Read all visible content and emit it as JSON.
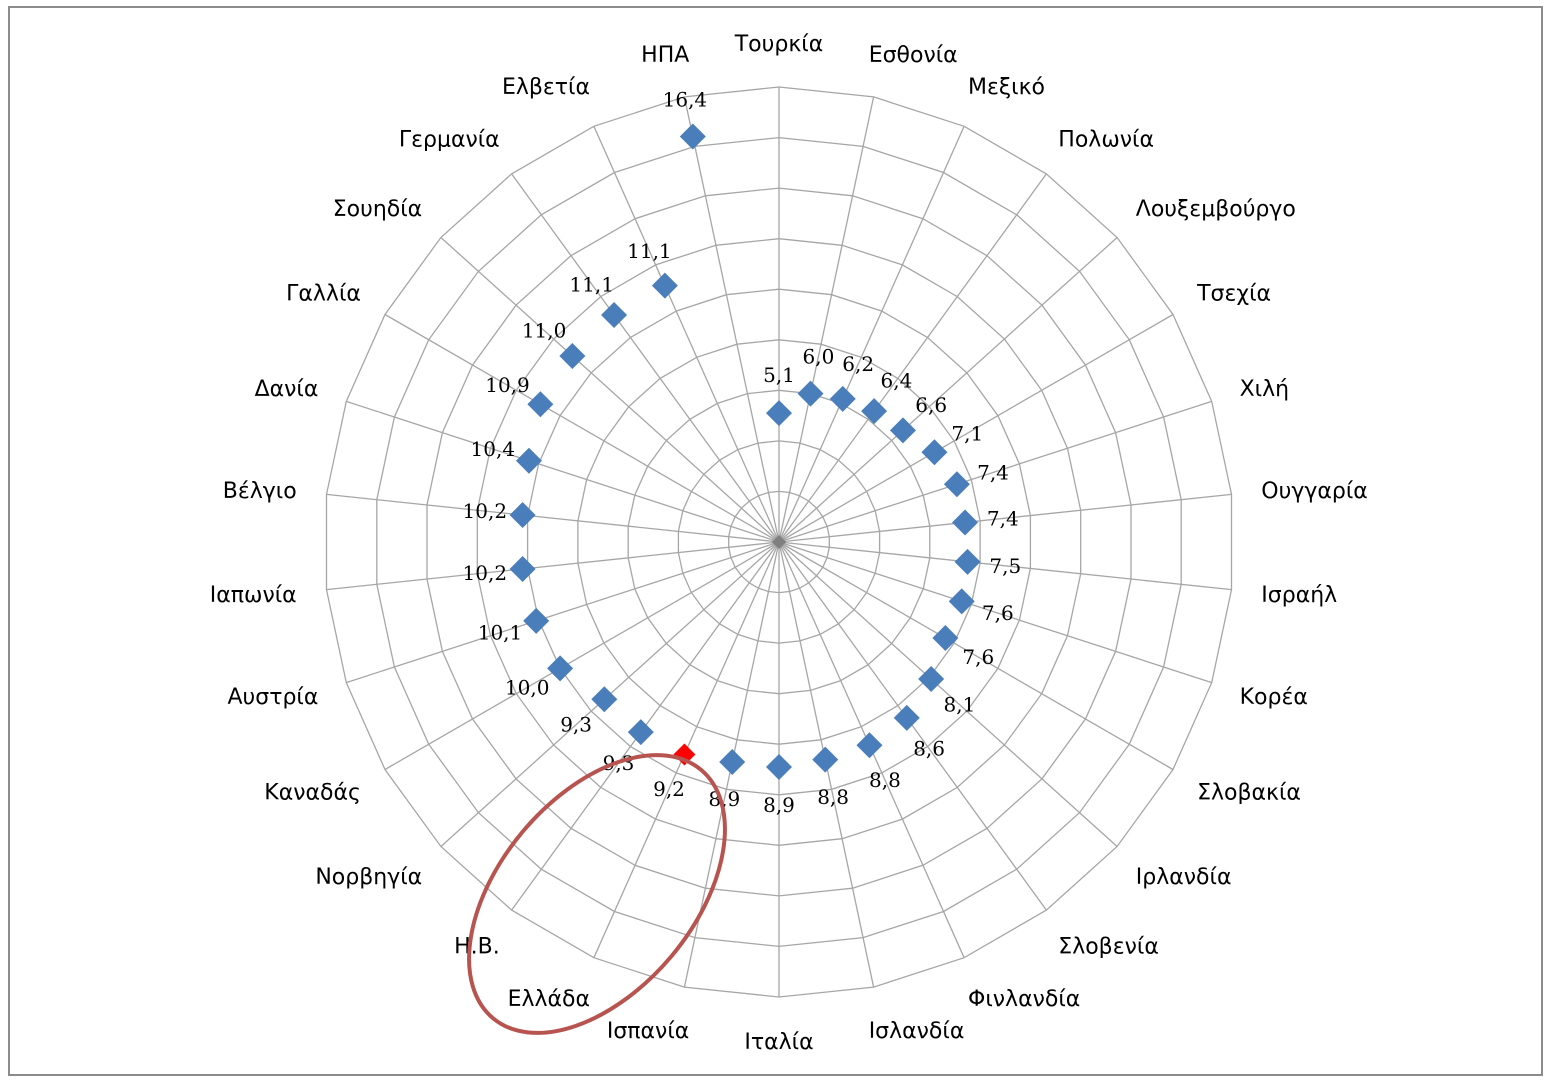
{
  "chart_data": {
    "type": "radar",
    "title": "",
    "grid": true,
    "legend": "none",
    "rmax": 18,
    "ring_step": 2,
    "categories": [
      "Τουρκία",
      "Εσθονία",
      "Μεξικό",
      "Πολωνία",
      "Λουξεμβούργο",
      "Τσεχία",
      "Χιλή",
      "Ουγγαρία",
      "Ισραήλ",
      "Κορέα",
      "Σλοβακία",
      "Ιρλανδία",
      "Σλοβενία",
      "Φινλανδία",
      "Ισλανδία",
      "Ιταλία",
      "Ισπανία",
      "Ελλάδα",
      "Η.Β.",
      "Νορβηγία",
      "Καναδάς",
      "Αυστρία",
      "Ιαπωνία",
      "Βέλγιο",
      "Δανία",
      "Γαλλία",
      "Σουηδία",
      "Γερμανία",
      "Ελβετία",
      "ΗΠΑ"
    ],
    "values": [
      5.1,
      6.0,
      6.2,
      6.4,
      6.6,
      7.1,
      7.4,
      7.4,
      7.5,
      7.6,
      7.6,
      8.1,
      8.6,
      8.8,
      8.8,
      8.9,
      8.9,
      9.2,
      9.3,
      9.3,
      10.0,
      10.1,
      10.2,
      10.2,
      10.4,
      10.9,
      11.0,
      11.1,
      11.1,
      16.4
    ],
    "value_labels": [
      "5,1",
      "6,0",
      "6,2",
      "6,4",
      "6,6",
      "7,1",
      "7,4",
      "7,4",
      "7,5",
      "7,6",
      "7,6",
      "8,1",
      "8,6",
      "8,8",
      "8,8",
      "8,9",
      "8,9",
      "9,2",
      "9,3",
      "9,3",
      "10,0",
      "10,1",
      "10,2",
      "10,2",
      "10,4",
      "10,9",
      "11,0",
      "11,1",
      "11,1",
      "16,4"
    ],
    "highlight_category": "Ελλάδα",
    "colors": {
      "marker": "#4a7ebb",
      "highlight": "#ff0000",
      "grid": "#a6a6a6",
      "ellipse": "#b85450"
    }
  }
}
